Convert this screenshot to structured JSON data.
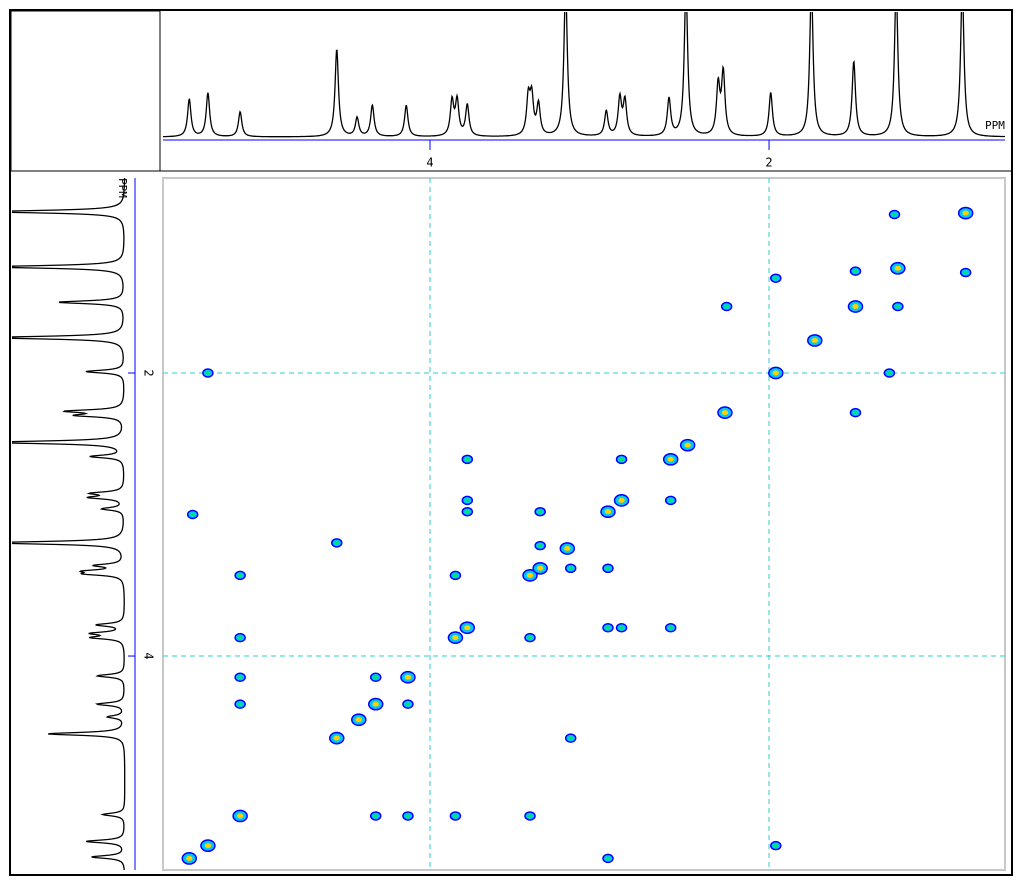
{
  "chart_data": {
    "type": "scatter",
    "x_label": "PPM",
    "y_label": "PPM",
    "x": [
      1.26,
      0.84,
      1.96,
      1.49,
      0.84,
      1.24,
      2.25,
      1.49,
      1.24,
      1.73,
      1.96,
      1.29,
      5.31,
      2.26,
      1.49,
      2.48,
      2.58,
      2.87,
      3.78,
      3.78,
      2.87,
      2.58,
      2.95,
      3.35,
      3.78,
      5.4,
      4.55,
      3.35,
      3.19,
      5.12,
      3.85,
      3.41,
      3.35,
      3.17,
      2.95,
      5.12,
      3.85,
      3.78,
      3.41,
      2.95,
      2.87,
      2.58,
      5.12,
      4.32,
      4.13,
      5.12,
      4.32,
      4.13,
      4.42,
      4.55,
      3.17,
      5.12,
      4.32,
      4.13,
      3.85,
      3.41,
      5.31,
      5.42,
      1.96,
      2.95
    ],
    "y": [
      0.88,
      0.87,
      1.33,
      1.28,
      1.29,
      1.26,
      1.53,
      1.53,
      1.53,
      1.77,
      2.0,
      2.0,
      2.0,
      2.28,
      2.28,
      2.51,
      2.61,
      2.61,
      2.61,
      2.9,
      2.9,
      2.9,
      2.98,
      2.98,
      2.98,
      3.0,
      3.2,
      3.22,
      3.24,
      3.43,
      3.43,
      3.43,
      3.38,
      3.38,
      3.38,
      3.87,
      3.87,
      3.8,
      3.87,
      3.8,
      3.8,
      3.8,
      4.15,
      4.15,
      4.15,
      4.34,
      4.34,
      4.34,
      4.45,
      4.58,
      4.58,
      5.13,
      5.13,
      5.13,
      5.13,
      5.13,
      5.34,
      5.43,
      5.34,
      5.43
    ],
    "xlim": [
      5.575,
      0.608
    ],
    "ylim": [
      0.622,
      5.512
    ],
    "xticks": [
      4,
      2
    ],
    "yticks": [
      2,
      4
    ],
    "grid": true,
    "color": "#0000ff",
    "projection": {
      "ppm": [
        5.42,
        5.31,
        5.12,
        4.55,
        4.43,
        4.34,
        4.14,
        3.87,
        3.84,
        3.78,
        3.42,
        3.4,
        3.36,
        3.2,
        2.96,
        2.88,
        2.85,
        2.59,
        2.49,
        2.3,
        2.27,
        1.99,
        1.75,
        1.5,
        1.25,
        0.86
      ],
      "intensity": [
        0.3,
        0.35,
        0.2,
        0.7,
        0.15,
        0.25,
        0.25,
        0.28,
        0.28,
        0.25,
        0.3,
        0.3,
        0.25,
        1.2,
        0.2,
        0.3,
        0.28,
        0.3,
        1.2,
        0.4,
        0.5,
        0.35,
        1.2,
        0.6,
        1.2,
        1.2
      ]
    }
  }
}
